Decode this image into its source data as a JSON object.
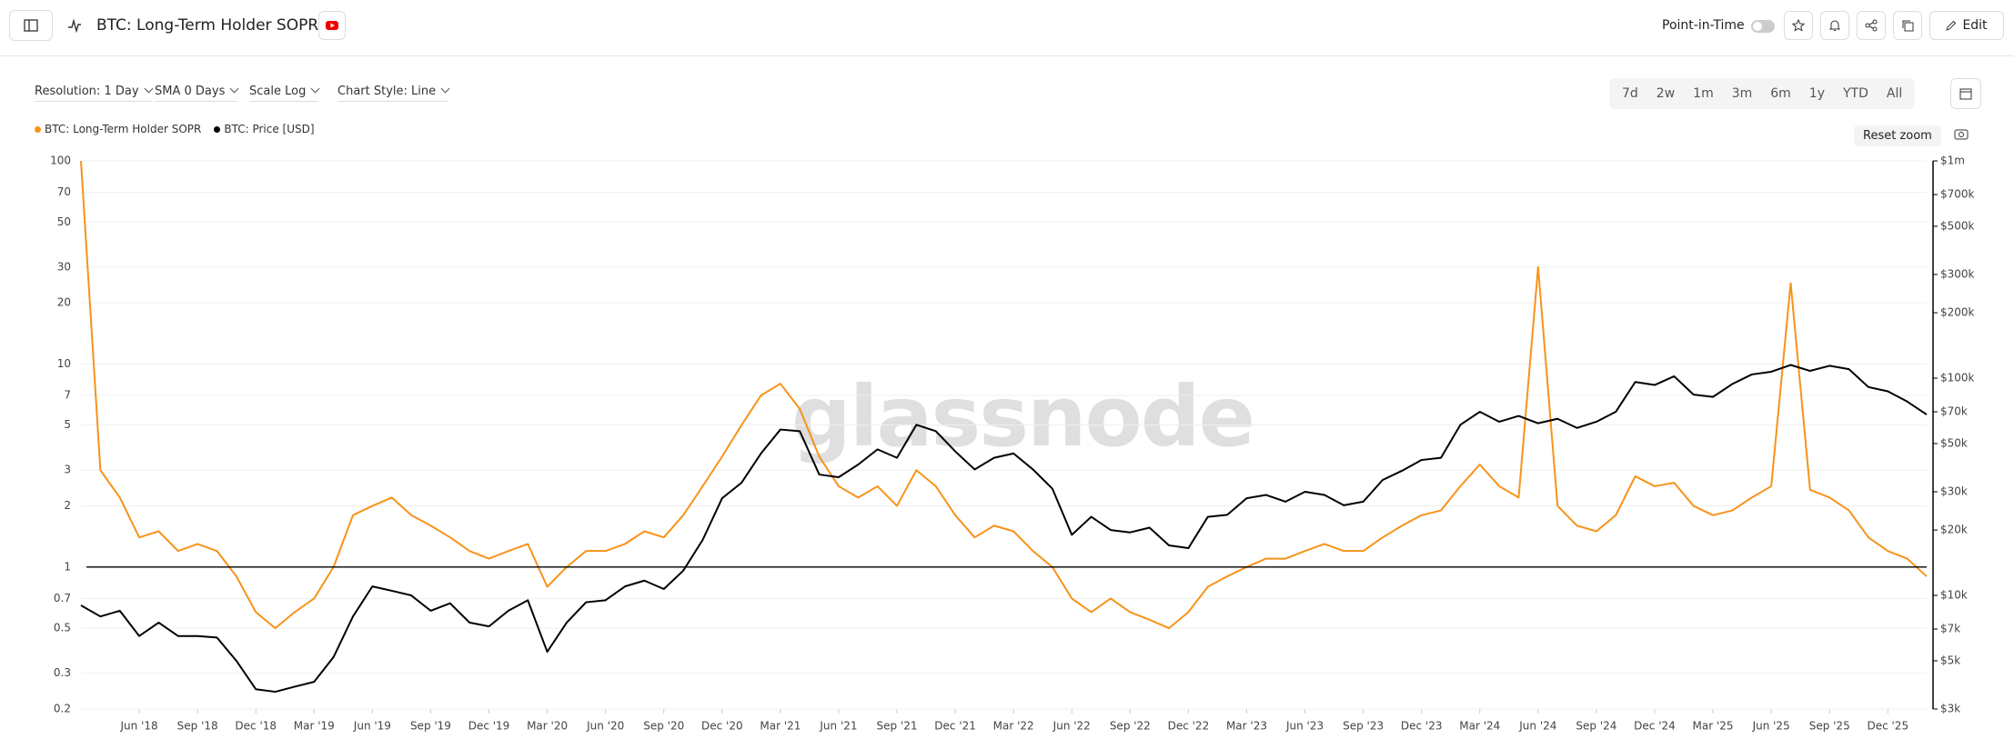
{
  "ui": {
    "title": "BTC: Long-Term Holder SOPR",
    "point_in_time": "Point-in-Time",
    "edit": "Edit",
    "controls": [
      "Resolution: 1 Day",
      "SMA 0 Days",
      "Scale Log",
      "Chart Style: Line"
    ],
    "ranges": [
      "7d",
      "2w",
      "1m",
      "3m",
      "6m",
      "1y",
      "YTD",
      "All"
    ],
    "reset_zoom": "Reset zoom",
    "watermark": "glassnode"
  },
  "chart_data": {
    "type": "line",
    "log_scale": true,
    "grid": true,
    "hline": 1,
    "x": [
      "2018-03",
      "2018-04",
      "2018-05",
      "2018-06",
      "2018-07",
      "2018-08",
      "2018-09",
      "2018-10",
      "2018-11",
      "2018-12",
      "2019-01",
      "2019-02",
      "2019-03",
      "2019-04",
      "2019-05",
      "2019-06",
      "2019-07",
      "2019-08",
      "2019-09",
      "2019-10",
      "2019-11",
      "2019-12",
      "2020-01",
      "2020-02",
      "2020-03",
      "2020-04",
      "2020-05",
      "2020-06",
      "2020-07",
      "2020-08",
      "2020-09",
      "2020-10",
      "2020-11",
      "2020-12",
      "2021-01",
      "2021-02",
      "2021-03",
      "2021-04",
      "2021-05",
      "2021-06",
      "2021-07",
      "2021-08",
      "2021-09",
      "2021-10",
      "2021-11",
      "2021-12",
      "2022-01",
      "2022-02",
      "2022-03",
      "2022-04",
      "2022-05",
      "2022-06",
      "2022-07",
      "2022-08",
      "2022-09",
      "2022-10",
      "2022-11",
      "2022-12",
      "2023-01",
      "2023-02",
      "2023-03",
      "2023-04",
      "2023-05",
      "2023-06",
      "2023-07",
      "2023-08",
      "2023-09",
      "2023-10",
      "2023-11",
      "2023-12",
      "2024-01",
      "2024-02",
      "2024-03",
      "2024-04",
      "2024-05",
      "2024-06",
      "2024-07",
      "2024-08",
      "2024-09",
      "2024-10",
      "2024-11",
      "2024-12",
      "2025-01",
      "2025-02",
      "2025-03",
      "2025-04",
      "2025-05",
      "2025-06",
      "2025-07",
      "2025-08",
      "2025-09",
      "2025-10",
      "2025-11",
      "2025-12",
      "2026-01",
      "2026-02"
    ],
    "xlim": [
      "2018-03",
      "2026-02"
    ],
    "xticks": [
      {
        "value": "2018-06",
        "label": "Jun '18"
      },
      {
        "value": "2018-09",
        "label": "Sep '18"
      },
      {
        "value": "2018-12",
        "label": "Dec '18"
      },
      {
        "value": "2019-03",
        "label": "Mar '19"
      },
      {
        "value": "2019-06",
        "label": "Jun '19"
      },
      {
        "value": "2019-09",
        "label": "Sep '19"
      },
      {
        "value": "2019-12",
        "label": "Dec '19"
      },
      {
        "value": "2020-03",
        "label": "Mar '20"
      },
      {
        "value": "2020-06",
        "label": "Jun '20"
      },
      {
        "value": "2020-09",
        "label": "Sep '20"
      },
      {
        "value": "2020-12",
        "label": "Dec '20"
      },
      {
        "value": "2021-03",
        "label": "Mar '21"
      },
      {
        "value": "2021-06",
        "label": "Jun '21"
      },
      {
        "value": "2021-09",
        "label": "Sep '21"
      },
      {
        "value": "2021-12",
        "label": "Dec '21"
      },
      {
        "value": "2022-03",
        "label": "Mar '22"
      },
      {
        "value": "2022-06",
        "label": "Jun '22"
      },
      {
        "value": "2022-09",
        "label": "Sep '22"
      },
      {
        "value": "2022-12",
        "label": "Dec '22"
      },
      {
        "value": "2023-03",
        "label": "Mar '23"
      },
      {
        "value": "2023-06",
        "label": "Jun '23"
      },
      {
        "value": "2023-09",
        "label": "Sep '23"
      },
      {
        "value": "2023-12",
        "label": "Dec '23"
      },
      {
        "value": "2024-03",
        "label": "Mar '24"
      },
      {
        "value": "2024-06",
        "label": "Jun '24"
      },
      {
        "value": "2024-09",
        "label": "Sep '24"
      },
      {
        "value": "2024-12",
        "label": "Dec '24"
      },
      {
        "value": "2025-03",
        "label": "Mar '25"
      },
      {
        "value": "2025-06",
        "label": "Jun '25"
      },
      {
        "value": "2025-09",
        "label": "Sep '25"
      },
      {
        "value": "2025-12",
        "label": "Dec '25"
      }
    ],
    "ylim": [
      0.2,
      100
    ],
    "yticks": [
      0.2,
      0.3,
      0.5,
      0.7,
      1,
      2,
      3,
      5,
      7,
      10,
      20,
      30,
      50,
      70,
      100
    ],
    "y2lim": [
      3000,
      1000000
    ],
    "y2ticks": [
      {
        "value": 3000,
        "label": "$3k"
      },
      {
        "value": 5000,
        "label": "$5k"
      },
      {
        "value": 7000,
        "label": "$7k"
      },
      {
        "value": 10000,
        "label": "$10k"
      },
      {
        "value": 20000,
        "label": "$20k"
      },
      {
        "value": 30000,
        "label": "$30k"
      },
      {
        "value": 50000,
        "label": "$50k"
      },
      {
        "value": 70000,
        "label": "$70k"
      },
      {
        "value": 100000,
        "label": "$100k"
      },
      {
        "value": 200000,
        "label": "$200k"
      },
      {
        "value": 300000,
        "label": "$300k"
      },
      {
        "value": 500000,
        "label": "$500k"
      },
      {
        "value": 700000,
        "label": "$700k"
      },
      {
        "value": 1000000,
        "label": "$1m"
      }
    ],
    "series": [
      {
        "name": "BTC: Long-Term Holder SOPR",
        "color": "#f7931a",
        "axis": "y",
        "values": [
          100,
          3,
          2.2,
          1.4,
          1.5,
          1.2,
          1.3,
          1.2,
          0.9,
          0.6,
          0.5,
          0.6,
          0.7,
          1.0,
          1.8,
          2.0,
          2.2,
          1.8,
          1.6,
          1.4,
          1.2,
          1.1,
          1.2,
          1.3,
          0.8,
          1.0,
          1.2,
          1.2,
          1.3,
          1.5,
          1.4,
          1.8,
          2.5,
          3.5,
          5,
          7,
          8,
          6,
          3.5,
          2.5,
          2.2,
          2.5,
          2,
          3,
          2.5,
          1.8,
          1.4,
          1.6,
          1.5,
          1.2,
          1.0,
          0.7,
          0.6,
          0.7,
          0.6,
          0.55,
          0.5,
          0.6,
          0.8,
          0.9,
          1.0,
          1.1,
          1.1,
          1.2,
          1.3,
          1.2,
          1.2,
          1.4,
          1.6,
          1.8,
          1.9,
          2.5,
          3.2,
          2.5,
          2.2,
          30,
          2.0,
          1.6,
          1.5,
          1.8,
          2.8,
          2.5,
          2.6,
          2.0,
          1.8,
          1.9,
          2.2,
          2.5,
          25,
          2.4,
          2.2,
          1.9,
          1.4,
          1.2,
          1.1,
          0.9
        ]
      },
      {
        "name": "BTC: Price [USD]",
        "color": "#000000",
        "axis": "y2",
        "values": [
          9000,
          8000,
          8500,
          6500,
          7500,
          6500,
          6500,
          6400,
          5000,
          3700,
          3600,
          3800,
          4000,
          5200,
          8000,
          11000,
          10500,
          10000,
          8500,
          9200,
          7500,
          7200,
          8500,
          9500,
          5500,
          7500,
          9300,
          9500,
          11000,
          11700,
          10700,
          13000,
          18000,
          28000,
          33000,
          45000,
          58000,
          57000,
          36000,
          35000,
          40000,
          47000,
          43000,
          61000,
          57000,
          46000,
          38000,
          43000,
          45000,
          38000,
          31000,
          19000,
          23000,
          20000,
          19500,
          20500,
          17000,
          16500,
          23000,
          23500,
          28000,
          29000,
          27000,
          30000,
          29000,
          26000,
          27000,
          34000,
          37500,
          42000,
          43000,
          61000,
          70000,
          63000,
          67000,
          62000,
          65000,
          59000,
          63000,
          70000,
          96000,
          93000,
          102000,
          84000,
          82000,
          94000,
          104000,
          107000,
          115000,
          108000,
          114000,
          110000,
          91000,
          87000,
          78000,
          68000
        ]
      }
    ]
  }
}
